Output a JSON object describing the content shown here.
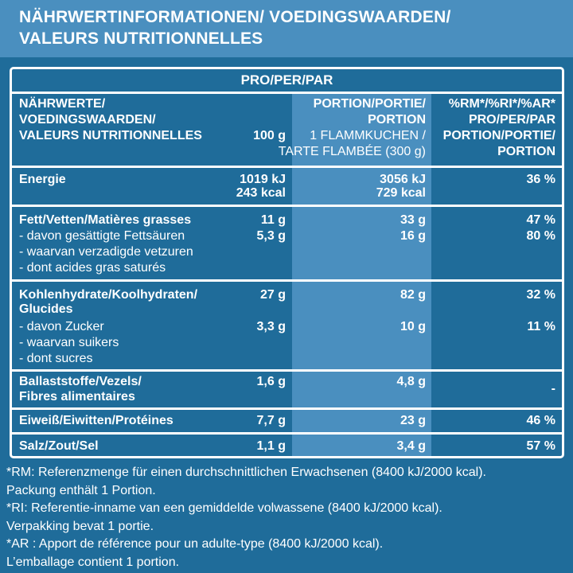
{
  "header": {
    "line1": "NÄHRWERTINFORMATIONEN/ VOEDINGSWAARDEN/",
    "line2": "VALEURS NUTRITIONNELLES"
  },
  "table": {
    "pro_header": "PRO/PER/PAR",
    "col1_header": [
      "NÄHRWERTE/",
      "VOEDINGSWAARDEN/",
      "VALEURS NUTRITIONNELLES"
    ],
    "col2_header": "100 g",
    "col3_header": [
      "PORTION/PORTIE/",
      "PORTION",
      "1 FLAMMKUCHEN /",
      "TARTE FLAMBÉE (300 g)"
    ],
    "col4_header": [
      "%RM*/%RI*/%AR*",
      "PRO/PER/PAR",
      "PORTION/PORTIE/",
      "PORTION"
    ],
    "energy": {
      "label": "Energie",
      "v100_kj": "1019 kJ",
      "v100_kcal": "243 kcal",
      "portion_kj": "3056 kJ",
      "portion_kcal": "729 kcal",
      "pct": "36 %"
    },
    "fat": {
      "label": "Fett/Vetten/Matières grasses",
      "v100": "11 g",
      "portion": "33 g",
      "pct": "47 %"
    },
    "sat_fat": {
      "label1": "- davon gesättigte Fettsäuren",
      "label2": "- waarvan verzadigde vetzuren",
      "label3": "- dont acides gras saturés",
      "v100": "5,3 g",
      "portion": "16 g",
      "pct": "80 %"
    },
    "carbs": {
      "label1": "Kohlenhydrate/Koolhydraten/",
      "label2": "Glucides",
      "v100": "27 g",
      "portion": "82 g",
      "pct": "32 %"
    },
    "sugar": {
      "label1": "- davon Zucker",
      "label2": "- waarvan suikers",
      "label3": "- dont sucres",
      "v100": "3,3 g",
      "portion": "10 g",
      "pct": "11 %"
    },
    "fiber": {
      "label1": "Ballaststoffe/Vezels/",
      "label2": "Fibres alimentaires",
      "v100": "1,6 g",
      "portion": "4,8 g",
      "pct": "-"
    },
    "protein": {
      "label": "Eiweiß/Eiwitten/Protéines",
      "v100": "7,7 g",
      "portion": "23 g",
      "pct": "46 %"
    },
    "salt": {
      "label": "Salz/Zout/Sel",
      "v100": "1,1 g",
      "portion": "3,4 g",
      "pct": "57 %"
    }
  },
  "footnote": [
    "*RM: Referenzmenge für einen durchschnittlichen Erwachsenen (8400 kJ/2000 kcal).",
    "Packung enthält 1 Portion.",
    "*RI: Referentie-inname van een gemiddelde volwassene (8400 kJ/2000 kcal).",
    "Verpakking bevat 1 portie.",
    "*AR : Apport de référence pour un adulte-type (8400 kJ/2000 kcal).",
    "L’emballage contient 1 portion."
  ],
  "colors": {
    "background": "#1f6c9a",
    "panel": "#4a8fbf",
    "text": "#ffffff"
  }
}
